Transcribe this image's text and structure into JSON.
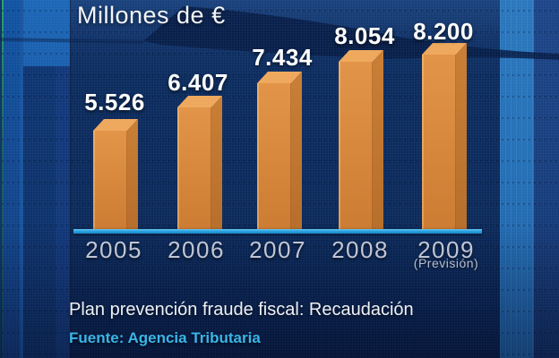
{
  "chart_data": {
    "type": "bar",
    "title": "Millones de €",
    "categories": [
      "2005",
      "2006",
      "2007",
      "2008",
      "2009"
    ],
    "category_notes": [
      "",
      "",
      "",
      "",
      "(Previsión)"
    ],
    "values": [
      5526,
      6407,
      7434,
      8054,
      8200
    ],
    "value_labels": [
      "5.526",
      "6.407",
      "7.434",
      "8.054",
      "8.200"
    ],
    "xlabel": "",
    "ylabel": "",
    "ylim": [
      0,
      8200
    ],
    "grid": false,
    "legend": "none"
  },
  "caption": "Plan prevención fraude fiscal: Recaudación",
  "source": "Fuente: Agencia Tributaria",
  "colors": {
    "bar_front": "#d6873c",
    "bar_top": "#efa95e",
    "bar_side": "#bc722e",
    "axis_line": "#2aa3e2",
    "source_text": "#3ab5e8",
    "year_text": "#c0c5d3",
    "value_text": "#ffffff",
    "background": "#0d2c5e"
  }
}
